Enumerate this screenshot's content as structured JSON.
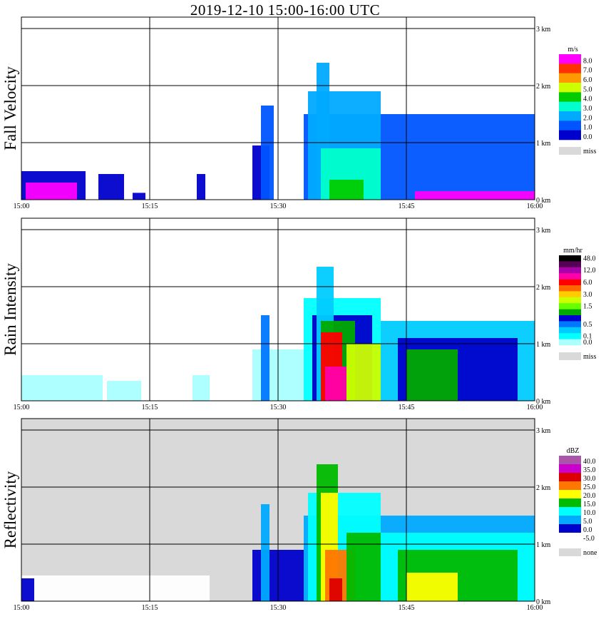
{
  "title": "2019-12-10   15:00-16:00 UTC",
  "chart_data": [
    {
      "type": "heatmap",
      "panel_label": "Fall Velocity",
      "unit": "m/s",
      "x_ticks": [
        "15:00",
        "15:15",
        "15:30",
        "15:45",
        "16:00"
      ],
      "y_ticks": [
        "0 km",
        "1 km",
        "2 km",
        "3 km"
      ],
      "xlim": [
        "15:00",
        "16:00"
      ],
      "ylim_km": [
        0,
        3
      ],
      "grid": true,
      "legend_placement": "right",
      "background": "#ffffff",
      "missing_label": "miss",
      "missing_color": "#d9d9d9",
      "scale": [
        {
          "label": "8.0",
          "color": "#ff00ff"
        },
        {
          "label": "7.0",
          "color": "#ff3300"
        },
        {
          "label": "6.0",
          "color": "#ff9900"
        },
        {
          "label": "5.0",
          "color": "#ccff00"
        },
        {
          "label": "4.0",
          "color": "#00cc00"
        },
        {
          "label": "3.0",
          "color": "#00ffcc"
        },
        {
          "label": "2.0",
          "color": "#00aaff"
        },
        {
          "label": "1.0",
          "color": "#0055ff"
        },
        {
          "label": "0.0",
          "color": "#0000cc"
        }
      ],
      "echo_cells": [
        {
          "t0": 0.0,
          "t1": 7.5,
          "top_km": 0.5,
          "color": "#0000cc"
        },
        {
          "t0": 0.5,
          "t1": 6.5,
          "top_km": 0.3,
          "color": "#ff00ff"
        },
        {
          "t0": 9.0,
          "t1": 12.0,
          "top_km": 0.45,
          "color": "#0000cc"
        },
        {
          "t0": 13.0,
          "t1": 14.5,
          "top_km": 0.12,
          "color": "#0000cc"
        },
        {
          "t0": 20.5,
          "t1": 21.5,
          "top_km": 0.45,
          "color": "#0000cc"
        },
        {
          "t0": 27.0,
          "t1": 29.0,
          "top_km": 0.95,
          "color": "#0000cc"
        },
        {
          "t0": 28.0,
          "t1": 29.5,
          "top_km": 1.65,
          "color": "#0055ff"
        },
        {
          "t0": 33.0,
          "t1": 60.0,
          "top_km": 1.5,
          "color": "#0055ff"
        },
        {
          "t0": 33.5,
          "t1": 42.0,
          "top_km": 1.9,
          "color": "#00aaff"
        },
        {
          "t0": 34.5,
          "t1": 36.0,
          "top_km": 2.4,
          "color": "#00aaff"
        },
        {
          "t0": 35.0,
          "t1": 42.0,
          "top_km": 0.9,
          "color": "#00ffcc"
        },
        {
          "t0": 36.0,
          "t1": 40.0,
          "top_km": 0.35,
          "color": "#00cc00"
        },
        {
          "t0": 46.0,
          "t1": 60.0,
          "top_km": 0.15,
          "color": "#ff00ff"
        }
      ]
    },
    {
      "type": "heatmap",
      "panel_label": "Rain Intensity",
      "unit": "mm/hr",
      "x_ticks": [
        "15:00",
        "15:15",
        "15:30",
        "15:45",
        "16:00"
      ],
      "y_ticks": [
        "0 km",
        "1 km",
        "2 km",
        "3 km"
      ],
      "xlim": [
        "15:00",
        "16:00"
      ],
      "ylim_km": [
        0,
        3
      ],
      "grid": true,
      "legend_placement": "right",
      "background": "#ffffff",
      "missing_label": "miss",
      "missing_color": "#d9d9d9",
      "scale": [
        {
          "label": "48.0",
          "color": "#000000"
        },
        {
          "label": "",
          "color": "#550055"
        },
        {
          "label": "12.0",
          "color": "#aa00aa"
        },
        {
          "label": "",
          "color": "#ff00aa"
        },
        {
          "label": "6.0",
          "color": "#ff0000"
        },
        {
          "label": "",
          "color": "#ff6600"
        },
        {
          "label": "3.0",
          "color": "#ffcc00"
        },
        {
          "label": "",
          "color": "#ccff00"
        },
        {
          "label": "1.5",
          "color": "#66ff00"
        },
        {
          "label": "",
          "color": "#00aa00"
        },
        {
          "label": "",
          "color": "#0000cc"
        },
        {
          "label": "0.5",
          "color": "#0077ff"
        },
        {
          "label": "",
          "color": "#00ccff"
        },
        {
          "label": "0.1",
          "color": "#00ffff"
        },
        {
          "label": "0.0",
          "color": "#aaffff"
        }
      ],
      "echo_cells": [
        {
          "t0": 0.0,
          "t1": 9.5,
          "top_km": 0.45,
          "color": "#aaffff"
        },
        {
          "t0": 10.0,
          "t1": 14.0,
          "top_km": 0.35,
          "color": "#aaffff"
        },
        {
          "t0": 20.0,
          "t1": 22.0,
          "top_km": 0.45,
          "color": "#aaffff"
        },
        {
          "t0": 27.0,
          "t1": 33.0,
          "top_km": 0.9,
          "color": "#aaffff"
        },
        {
          "t0": 28.0,
          "t1": 29.0,
          "top_km": 1.5,
          "color": "#0077ff"
        },
        {
          "t0": 33.0,
          "t1": 42.0,
          "top_km": 1.8,
          "color": "#00ffff"
        },
        {
          "t0": 34.0,
          "t1": 41.0,
          "top_km": 1.5,
          "color": "#0000cc"
        },
        {
          "t0": 34.5,
          "t1": 36.5,
          "top_km": 2.35,
          "color": "#00ccff"
        },
        {
          "t0": 35.0,
          "t1": 39.0,
          "top_km": 1.4,
          "color": "#00aa00"
        },
        {
          "t0": 35.0,
          "t1": 37.5,
          "top_km": 1.2,
          "color": "#ff0000"
        },
        {
          "t0": 35.5,
          "t1": 38.0,
          "top_km": 0.6,
          "color": "#ff00aa"
        },
        {
          "t0": 38.0,
          "t1": 42.0,
          "top_km": 1.0,
          "color": "#ccff00"
        },
        {
          "t0": 42.0,
          "t1": 60.0,
          "top_km": 1.4,
          "color": "#00ccff"
        },
        {
          "t0": 44.0,
          "t1": 58.0,
          "top_km": 1.1,
          "color": "#0000cc"
        },
        {
          "t0": 45.0,
          "t1": 51.0,
          "top_km": 0.9,
          "color": "#00aa00"
        }
      ]
    },
    {
      "type": "heatmap",
      "panel_label": "Reflectivity",
      "unit": "dBZ",
      "x_ticks": [
        "15:00",
        "15:15",
        "15:30",
        "15:45",
        "16:00"
      ],
      "y_ticks": [
        "0 km",
        "1 km",
        "2 km",
        "3 km"
      ],
      "xlim": [
        "15:00",
        "16:00"
      ],
      "ylim_km": [
        0,
        3
      ],
      "grid": true,
      "legend_placement": "right",
      "background": "#d9d9d9",
      "missing_label": "none",
      "missing_color": "#d9d9d9",
      "scale": [
        {
          "label": "40.0",
          "color": "#aa55aa"
        },
        {
          "label": "35.0",
          "color": "#cc00cc"
        },
        {
          "label": "30.0",
          "color": "#dd0000"
        },
        {
          "label": "25.0",
          "color": "#ff7700"
        },
        {
          "label": "20.0",
          "color": "#ffff00"
        },
        {
          "label": "15.0",
          "color": "#00bb00"
        },
        {
          "label": "10.0",
          "color": "#00ffff"
        },
        {
          "label": "5.0",
          "color": "#00aaff"
        },
        {
          "label": "0.0",
          "color": "#0000cc"
        },
        {
          "label": "-5.0",
          "color": "#ffffff"
        }
      ],
      "echo_cells": [
        {
          "t0": 0.0,
          "t1": 22.0,
          "top_km": 0.45,
          "color": "#ffffff"
        },
        {
          "t0": 0.0,
          "t1": 1.5,
          "top_km": 0.4,
          "color": "#0000cc"
        },
        {
          "t0": 27.0,
          "t1": 33.0,
          "top_km": 0.9,
          "color": "#0000cc"
        },
        {
          "t0": 28.0,
          "t1": 29.0,
          "top_km": 1.7,
          "color": "#00aaff"
        },
        {
          "t0": 33.0,
          "t1": 60.0,
          "top_km": 1.5,
          "color": "#00aaff"
        },
        {
          "t0": 33.5,
          "t1": 42.0,
          "top_km": 1.9,
          "color": "#00ffff"
        },
        {
          "t0": 34.5,
          "t1": 37.0,
          "top_km": 2.4,
          "color": "#00bb00"
        },
        {
          "t0": 35.0,
          "t1": 37.0,
          "top_km": 1.9,
          "color": "#ffff00"
        },
        {
          "t0": 35.5,
          "t1": 39.0,
          "top_km": 0.9,
          "color": "#ff7700"
        },
        {
          "t0": 36.0,
          "t1": 37.5,
          "top_km": 0.4,
          "color": "#dd0000"
        },
        {
          "t0": 38.0,
          "t1": 42.0,
          "top_km": 1.2,
          "color": "#00bb00"
        },
        {
          "t0": 42.0,
          "t1": 60.0,
          "top_km": 1.2,
          "color": "#00ffff"
        },
        {
          "t0": 44.0,
          "t1": 58.0,
          "top_km": 0.9,
          "color": "#00bb00"
        },
        {
          "t0": 45.0,
          "t1": 51.0,
          "top_km": 0.5,
          "color": "#ffff00"
        }
      ]
    }
  ]
}
